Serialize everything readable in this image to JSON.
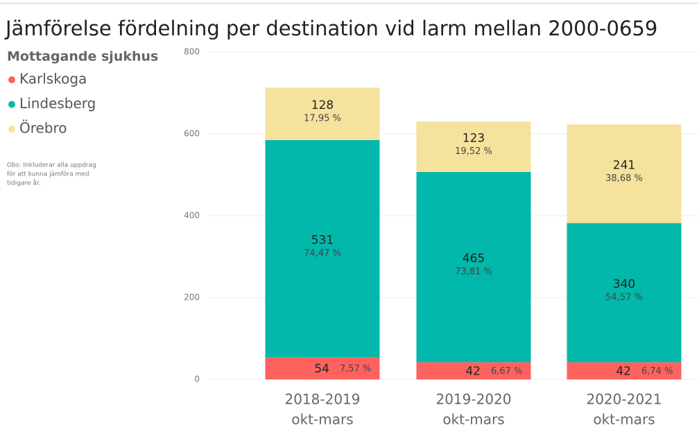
{
  "chart_data": {
    "type": "stacked-bar",
    "title": "Jämförelse fördelning per destination vid larm mellan 2000-0659",
    "legend_title": "Mottagande sjukhus",
    "note": [
      "Obs: Inkluderar alla uppdrag",
      "för att kunna jämföra med",
      "tidigare år."
    ],
    "categories": [
      [
        "2018-2019",
        "okt-mars"
      ],
      [
        "2019-2020",
        "okt-mars"
      ],
      [
        "2020-2021",
        "okt-mars"
      ]
    ],
    "series": [
      {
        "name": "Karlskoga",
        "color": "#fd625e",
        "values": [
          54,
          42,
          42
        ],
        "percent_labels": [
          "7,57 %",
          "6,67 %",
          "6,74 %"
        ]
      },
      {
        "name": "Lindesberg",
        "color": "#01b8aa",
        "values": [
          531,
          465,
          340
        ],
        "percent_labels": [
          "74,47 %",
          "73,81 %",
          "54,57 %"
        ]
      },
      {
        "name": "Örebro",
        "color": "#f5e29c",
        "values": [
          128,
          123,
          241
        ],
        "percent_labels": [
          "17,95 %",
          "19,52 %",
          "38,68 %"
        ]
      }
    ],
    "ylim": [
      0,
      800
    ],
    "yticks": [
      0,
      200,
      400,
      600,
      800
    ],
    "grid": true,
    "legend": "left"
  }
}
